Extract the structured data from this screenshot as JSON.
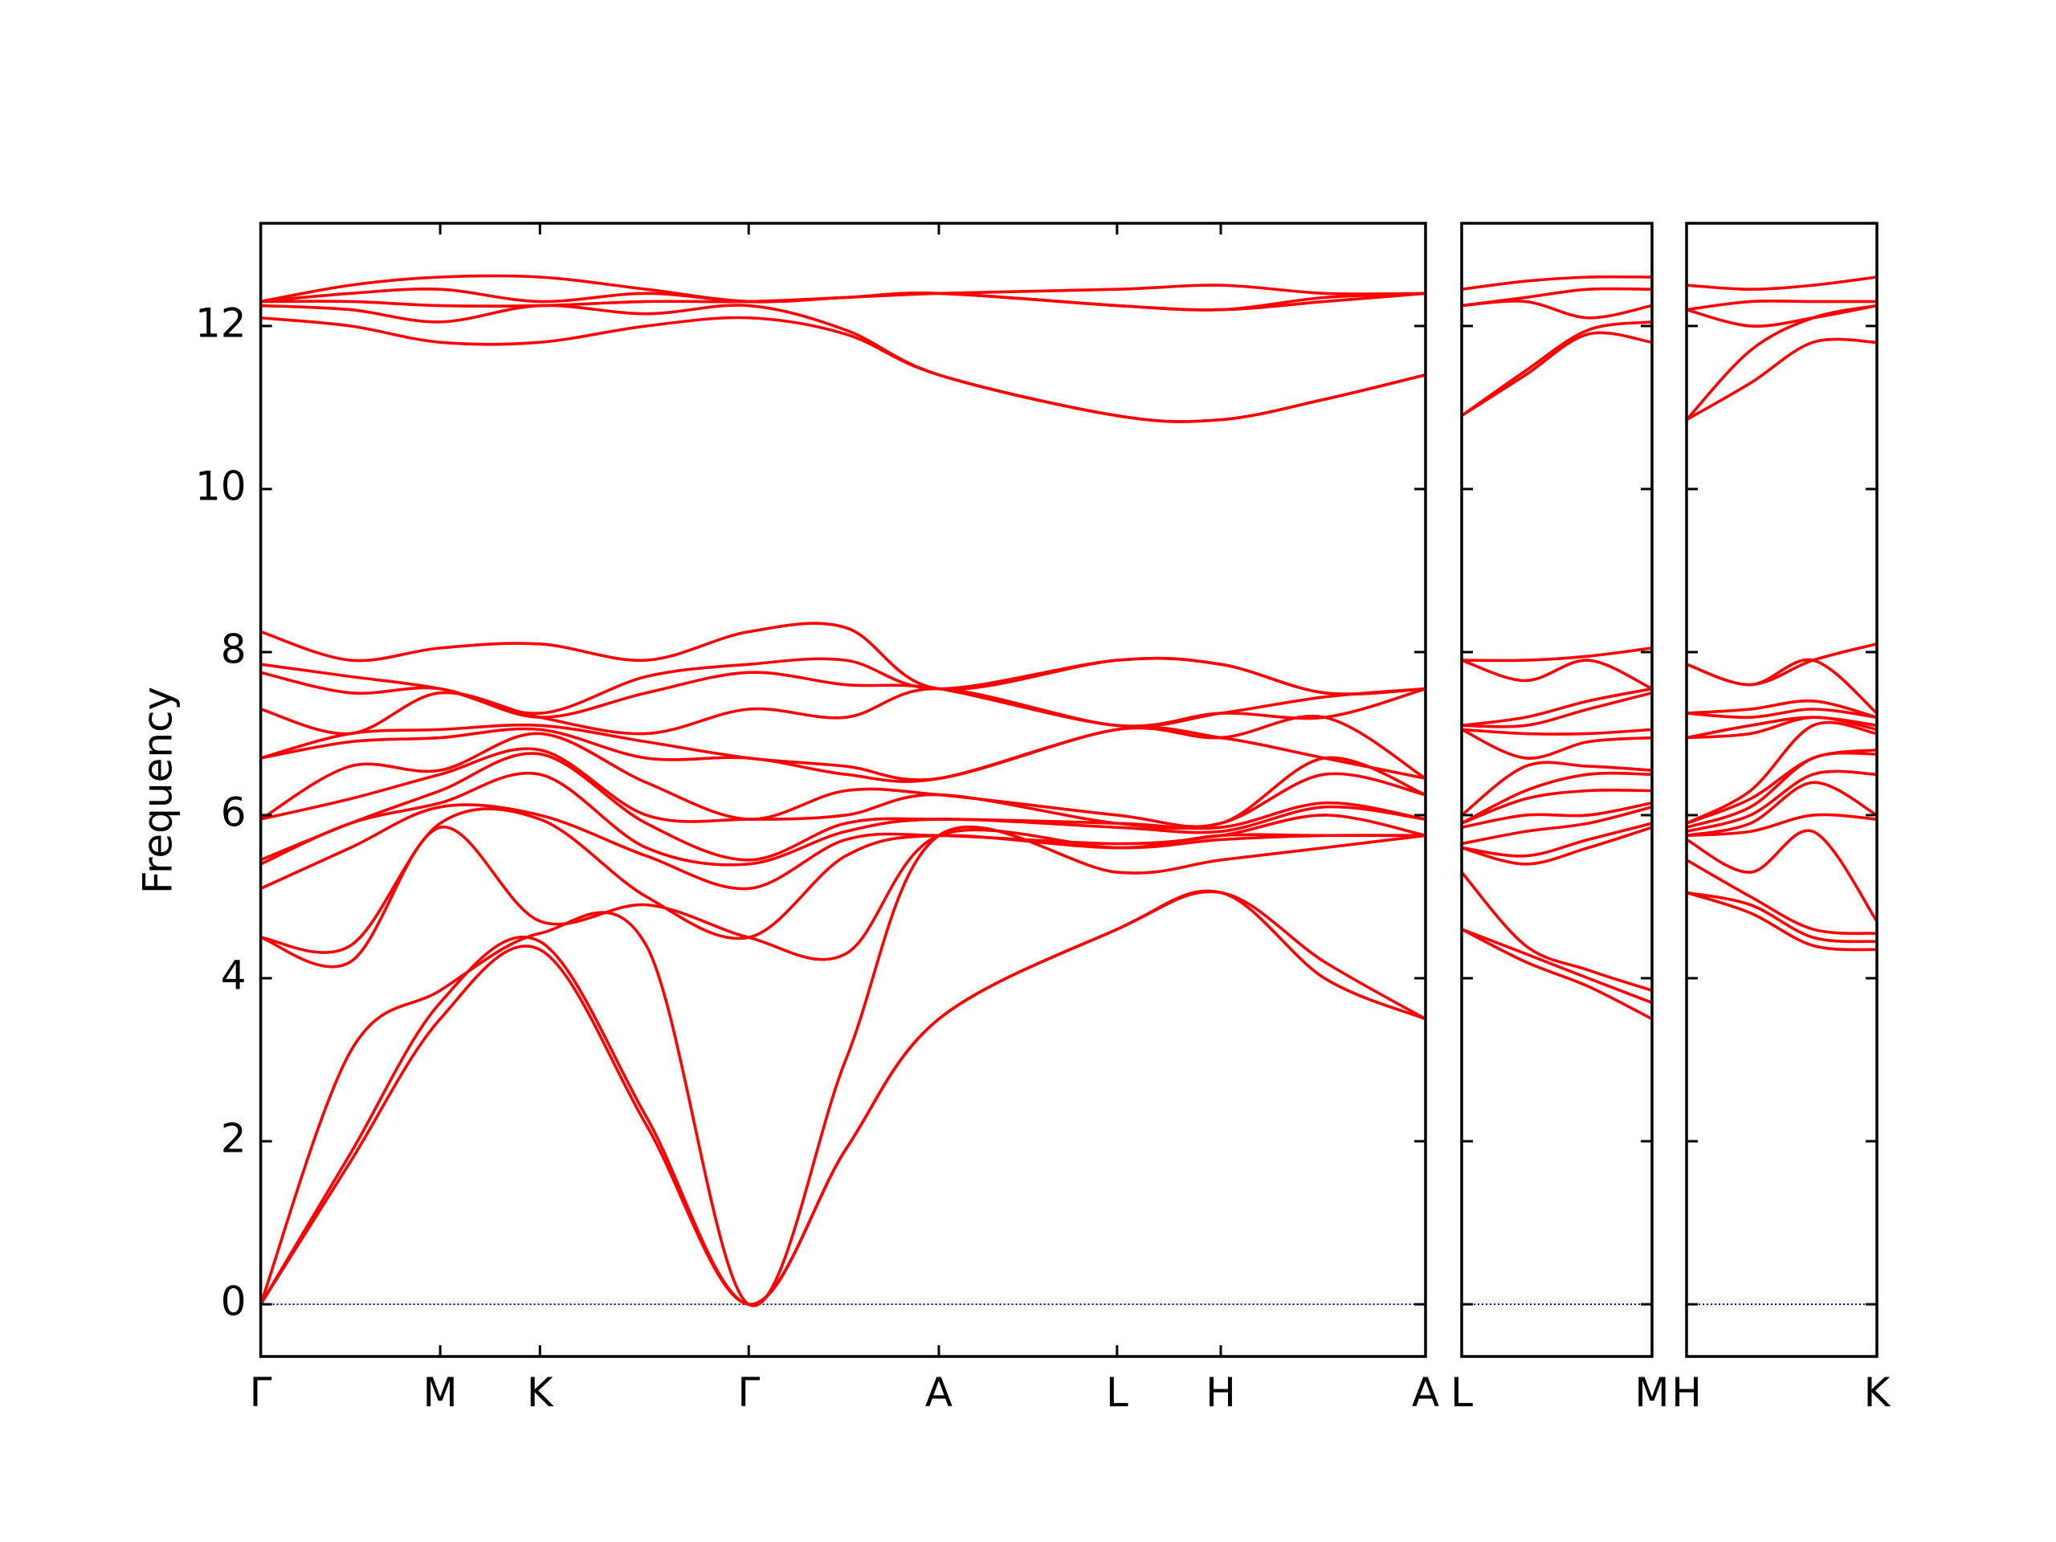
{
  "chart_data": [
    {
      "type": "line",
      "ylabel": "Frequency",
      "color": "#ff0000",
      "baseline": {
        "value": 0,
        "color": "#0000ff"
      },
      "ylim": [
        -0.64,
        13.26
      ],
      "yticks": [
        0,
        2,
        4,
        6,
        8,
        10,
        12
      ],
      "ytick_labels": true,
      "xlim": [
        0,
        8.76
      ],
      "xticks": [
        {
          "value": 0,
          "label": "Γ"
        },
        {
          "value": 1.35,
          "label": "M"
        },
        {
          "value": 2.1,
          "label": "K"
        },
        {
          "value": 3.67,
          "label": "Γ"
        },
        {
          "value": 5.1,
          "label": "A"
        },
        {
          "value": 6.44,
          "label": "L"
        },
        {
          "value": 7.22,
          "label": "H"
        },
        {
          "value": 8.76,
          "label": "A"
        }
      ],
      "x": [
        0,
        0.675,
        1.35,
        2.1,
        2.9,
        3.67,
        4.4,
        5.1,
        6.44,
        7.22,
        8.0,
        8.76
      ],
      "series": [
        {
          "values": [
            0,
            1.75,
            3.5,
            4.35,
            2.2,
            0,
            1.9,
            3.5,
            4.6,
            5.05,
            4.0,
            3.5
          ]
        },
        {
          "values": [
            0,
            1.85,
            3.7,
            4.45,
            2.3,
            0,
            1.9,
            3.5,
            4.6,
            5.05,
            4.2,
            3.5
          ]
        },
        {
          "values": [
            0,
            3.1,
            3.85,
            4.55,
            4.4,
            0,
            3.0,
            5.75,
            5.3,
            5.45,
            5.6,
            5.75
          ]
        },
        {
          "values": [
            4.5,
            4.2,
            5.85,
            4.7,
            4.9,
            4.5,
            4.3,
            5.75,
            5.6,
            5.7,
            5.75,
            5.75
          ]
        },
        {
          "values": [
            4.5,
            4.4,
            5.9,
            5.95,
            5.0,
            4.5,
            5.5,
            5.75,
            5.6,
            5.75,
            5.75,
            5.75
          ]
        },
        {
          "values": [
            5.1,
            5.6,
            6.1,
            6.0,
            5.5,
            5.1,
            5.7,
            5.75,
            5.65,
            5.75,
            6.0,
            5.75
          ]
        },
        {
          "values": [
            5.4,
            5.9,
            6.15,
            6.5,
            5.6,
            5.4,
            5.8,
            5.95,
            5.85,
            5.8,
            6.1,
            5.95
          ]
        },
        {
          "values": [
            5.45,
            5.9,
            6.3,
            6.75,
            5.9,
            5.45,
            5.9,
            5.95,
            5.9,
            5.85,
            6.15,
            5.95
          ]
        },
        {
          "values": [
            5.95,
            6.2,
            6.5,
            6.8,
            6.0,
            5.95,
            6.0,
            6.25,
            5.9,
            5.9,
            6.5,
            6.25
          ]
        },
        {
          "values": [
            5.95,
            6.6,
            6.55,
            7.0,
            6.4,
            5.95,
            6.3,
            6.25,
            6.0,
            5.9,
            6.7,
            6.25
          ]
        },
        {
          "values": [
            6.7,
            6.9,
            6.95,
            7.05,
            6.7,
            6.7,
            6.5,
            6.45,
            7.05,
            6.95,
            6.7,
            6.45
          ]
        },
        {
          "values": [
            6.7,
            7.0,
            7.05,
            7.1,
            6.9,
            6.7,
            6.6,
            6.45,
            7.05,
            6.95,
            7.2,
            6.45
          ]
        },
        {
          "values": [
            7.3,
            7.0,
            7.5,
            7.2,
            7.0,
            7.3,
            7.2,
            7.55,
            7.1,
            7.25,
            7.2,
            7.55
          ]
        },
        {
          "values": [
            7.75,
            7.5,
            7.55,
            7.2,
            7.5,
            7.75,
            7.6,
            7.55,
            7.1,
            7.25,
            7.45,
            7.55
          ]
        },
        {
          "values": [
            7.85,
            7.7,
            7.55,
            7.25,
            7.7,
            7.85,
            7.9,
            7.55,
            7.9,
            7.85,
            7.5,
            7.55
          ]
        },
        {
          "values": [
            8.25,
            7.9,
            8.05,
            8.1,
            7.9,
            8.25,
            8.3,
            7.55,
            7.9,
            7.85,
            7.5,
            7.55
          ]
        },
        {
          "values": [
            12.1,
            12.0,
            11.8,
            11.8,
            12.0,
            12.1,
            11.9,
            11.4,
            10.9,
            10.85,
            11.1,
            11.4
          ]
        },
        {
          "values": [
            12.25,
            12.2,
            12.05,
            12.25,
            12.15,
            12.25,
            11.95,
            11.4,
            10.9,
            10.85,
            11.1,
            11.4
          ]
        },
        {
          "values": [
            12.3,
            12.3,
            12.25,
            12.25,
            12.3,
            12.3,
            12.35,
            12.4,
            12.25,
            12.2,
            12.3,
            12.4
          ]
        },
        {
          "values": [
            12.3,
            12.4,
            12.45,
            12.3,
            12.4,
            12.3,
            12.35,
            12.4,
            12.25,
            12.2,
            12.35,
            12.4
          ]
        },
        {
          "values": [
            12.3,
            12.5,
            12.6,
            12.6,
            12.45,
            12.3,
            12.35,
            12.4,
            12.45,
            12.5,
            12.4,
            12.4
          ]
        }
      ]
    },
    {
      "type": "line",
      "color": "#ff0000",
      "baseline": {
        "value": 0,
        "color": "#0000ff"
      },
      "ylim": [
        -0.64,
        13.26
      ],
      "yticks": [
        0,
        2,
        4,
        6,
        8,
        10,
        12
      ],
      "ytick_labels": false,
      "xlim": [
        0,
        1.43
      ],
      "xticks": [
        {
          "value": 0,
          "label": "L"
        },
        {
          "value": 1.43,
          "label": "M"
        }
      ],
      "x": [
        0,
        0.48,
        0.95,
        1.43
      ],
      "series": [
        {
          "values": [
            4.6,
            4.2,
            3.9,
            3.5
          ]
        },
        {
          "values": [
            4.6,
            4.3,
            4.0,
            3.7
          ]
        },
        {
          "values": [
            5.3,
            4.4,
            4.1,
            3.85
          ]
        },
        {
          "values": [
            5.6,
            5.4,
            5.6,
            5.85
          ]
        },
        {
          "values": [
            5.6,
            5.5,
            5.7,
            5.9
          ]
        },
        {
          "values": [
            5.65,
            5.8,
            5.9,
            6.1
          ]
        },
        {
          "values": [
            5.85,
            6.0,
            6.0,
            6.15
          ]
        },
        {
          "values": [
            5.9,
            6.2,
            6.3,
            6.3
          ]
        },
        {
          "values": [
            5.9,
            6.3,
            6.5,
            6.5
          ]
        },
        {
          "values": [
            6.0,
            6.6,
            6.6,
            6.55
          ]
        },
        {
          "values": [
            7.05,
            6.7,
            6.9,
            6.95
          ]
        },
        {
          "values": [
            7.05,
            7.0,
            7.0,
            7.05
          ]
        },
        {
          "values": [
            7.1,
            7.1,
            7.3,
            7.5
          ]
        },
        {
          "values": [
            7.1,
            7.2,
            7.4,
            7.55
          ]
        },
        {
          "values": [
            7.9,
            7.65,
            7.9,
            7.55
          ]
        },
        {
          "values": [
            7.9,
            7.9,
            7.95,
            8.05
          ]
        },
        {
          "values": [
            10.9,
            11.4,
            11.9,
            11.8
          ]
        },
        {
          "values": [
            10.9,
            11.45,
            11.95,
            12.05
          ]
        },
        {
          "values": [
            12.25,
            12.3,
            12.1,
            12.25
          ]
        },
        {
          "values": [
            12.25,
            12.35,
            12.45,
            12.45
          ]
        },
        {
          "values": [
            12.45,
            12.55,
            12.6,
            12.6
          ]
        }
      ]
    },
    {
      "type": "line",
      "color": "#ff0000",
      "baseline": {
        "value": 0,
        "color": "#0000ff"
      },
      "ylim": [
        -0.64,
        13.26
      ],
      "yticks": [
        0,
        2,
        4,
        6,
        8,
        10,
        12
      ],
      "ytick_labels": false,
      "xlim": [
        0,
        1.43
      ],
      "xticks": [
        {
          "value": 0,
          "label": "H"
        },
        {
          "value": 1.43,
          "label": "K"
        }
      ],
      "x": [
        0,
        0.48,
        0.95,
        1.43
      ],
      "series": [
        {
          "values": [
            5.05,
            4.8,
            4.4,
            4.35
          ]
        },
        {
          "values": [
            5.05,
            4.9,
            4.5,
            4.45
          ]
        },
        {
          "values": [
            5.45,
            5.0,
            4.6,
            4.55
          ]
        },
        {
          "values": [
            5.7,
            5.3,
            5.8,
            4.7
          ]
        },
        {
          "values": [
            5.75,
            5.8,
            6.0,
            5.95
          ]
        },
        {
          "values": [
            5.75,
            5.9,
            6.4,
            6.0
          ]
        },
        {
          "values": [
            5.8,
            6.0,
            6.5,
            6.5
          ]
        },
        {
          "values": [
            5.85,
            6.1,
            6.7,
            6.75
          ]
        },
        {
          "values": [
            5.9,
            6.2,
            6.7,
            6.8
          ]
        },
        {
          "values": [
            5.9,
            6.3,
            7.1,
            7.0
          ]
        },
        {
          "values": [
            6.95,
            7.0,
            7.2,
            7.05
          ]
        },
        {
          "values": [
            6.95,
            7.1,
            7.2,
            7.1
          ]
        },
        {
          "values": [
            7.25,
            7.2,
            7.3,
            7.2
          ]
        },
        {
          "values": [
            7.25,
            7.3,
            7.4,
            7.2
          ]
        },
        {
          "values": [
            7.85,
            7.6,
            7.9,
            7.25
          ]
        },
        {
          "values": [
            7.85,
            7.6,
            7.9,
            8.1
          ]
        },
        {
          "values": [
            10.85,
            11.3,
            11.8,
            11.8
          ]
        },
        {
          "values": [
            10.85,
            11.7,
            12.1,
            12.25
          ]
        },
        {
          "values": [
            12.2,
            12.0,
            12.1,
            12.25
          ]
        },
        {
          "values": [
            12.2,
            12.3,
            12.3,
            12.3
          ]
        },
        {
          "values": [
            12.5,
            12.45,
            12.5,
            12.6
          ]
        }
      ]
    }
  ]
}
